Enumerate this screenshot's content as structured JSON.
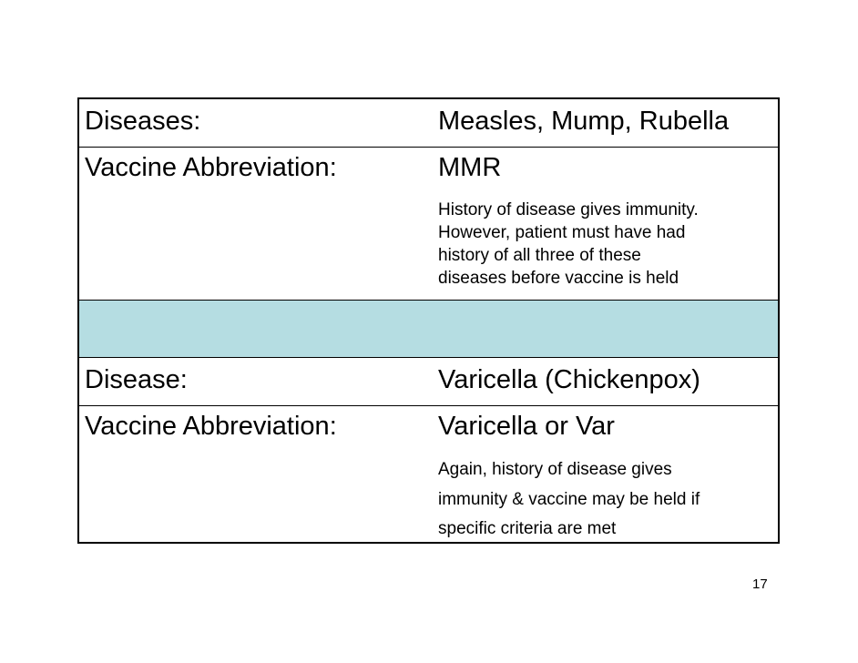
{
  "mmr_section": {
    "diseases_label": "Diseases:",
    "diseases_value": "Measles, Mump, Rubella",
    "abbrev_label": "Vaccine Abbreviation:",
    "abbrev_value": "MMR",
    "note_lines": [
      "History of disease gives immunity.",
      "However, patient must have had",
      "history of all three of these",
      "diseases before vaccine is held"
    ]
  },
  "spacer_color": "#b5dde2",
  "varicella_section": {
    "disease_label": "Disease:",
    "disease_value": "Varicella (Chickenpox)",
    "abbrev_label": "Vaccine Abbreviation:",
    "abbrev_value": "Varicella or Var",
    "note_lines": [
      "Again, history of disease gives",
      "immunity & vaccine may be held if",
      "specific criteria are met"
    ]
  },
  "page_number": "17"
}
